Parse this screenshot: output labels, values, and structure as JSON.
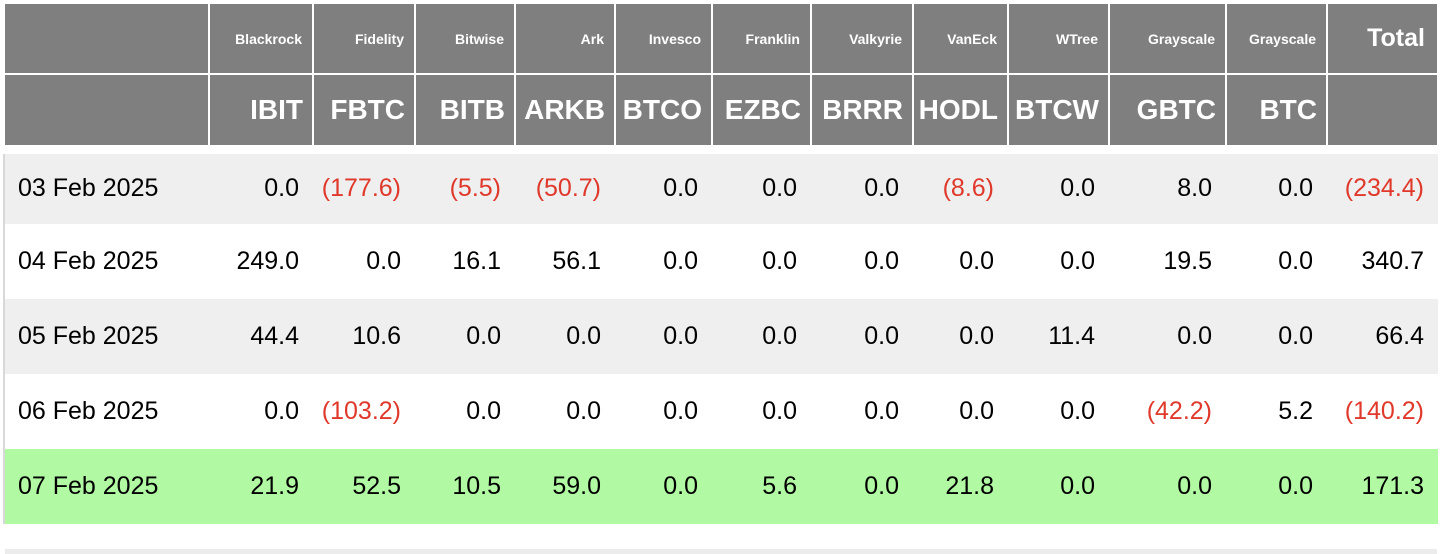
{
  "chart_data": {
    "type": "table",
    "title": "",
    "provider_headers": [
      "Blackrock",
      "Fidelity",
      "Bitwise",
      "Ark",
      "Invesco",
      "Franklin",
      "Valkyrie",
      "VanEck",
      "WTree",
      "Grayscale",
      "Grayscale"
    ],
    "ticker_headers": [
      "IBIT",
      "FBTC",
      "BITB",
      "ARKB",
      "BTCO",
      "EZBC",
      "BRRR",
      "HODL",
      "BTCW",
      "GBTC",
      "BTC"
    ],
    "total_label": "Total",
    "rows": [
      {
        "date": "03 Feb 2025",
        "highlight": false,
        "values": [
          "0.0",
          "(177.6)",
          "(5.5)",
          "(50.7)",
          "0.0",
          "0.0",
          "0.0",
          "(8.6)",
          "0.0",
          "8.0",
          "0.0",
          "(234.4)"
        ]
      },
      {
        "date": "04 Feb 2025",
        "highlight": false,
        "values": [
          "249.0",
          "0.0",
          "16.1",
          "56.1",
          "0.0",
          "0.0",
          "0.0",
          "0.0",
          "0.0",
          "19.5",
          "0.0",
          "340.7"
        ]
      },
      {
        "date": "05 Feb 2025",
        "highlight": false,
        "values": [
          "44.4",
          "10.6",
          "0.0",
          "0.0",
          "0.0",
          "0.0",
          "0.0",
          "0.0",
          "11.4",
          "0.0",
          "0.0",
          "66.4"
        ]
      },
      {
        "date": "06 Feb 2025",
        "highlight": false,
        "values": [
          "0.0",
          "(103.2)",
          "0.0",
          "0.0",
          "0.0",
          "0.0",
          "0.0",
          "0.0",
          "0.0",
          "(42.2)",
          "5.2",
          "(140.2)"
        ]
      },
      {
        "date": "07 Feb 2025",
        "highlight": true,
        "values": [
          "21.9",
          "52.5",
          "10.5",
          "59.0",
          "0.0",
          "5.6",
          "0.0",
          "21.8",
          "0.0",
          "0.0",
          "0.0",
          "171.3"
        ]
      }
    ],
    "negative_format": "parentheses",
    "layout_hints": {
      "grid": "header-borders-only",
      "alternating_rows": true,
      "latest_row_highlighted": true
    }
  },
  "colors": {
    "header_bg": "#7f7f7f",
    "header_text": "#ffffff",
    "row_alt_bg": "#efefef",
    "row_bg": "#ffffff",
    "highlight_bg": "#b1f9a3",
    "negative": "#e0382b",
    "text": "#000000"
  }
}
